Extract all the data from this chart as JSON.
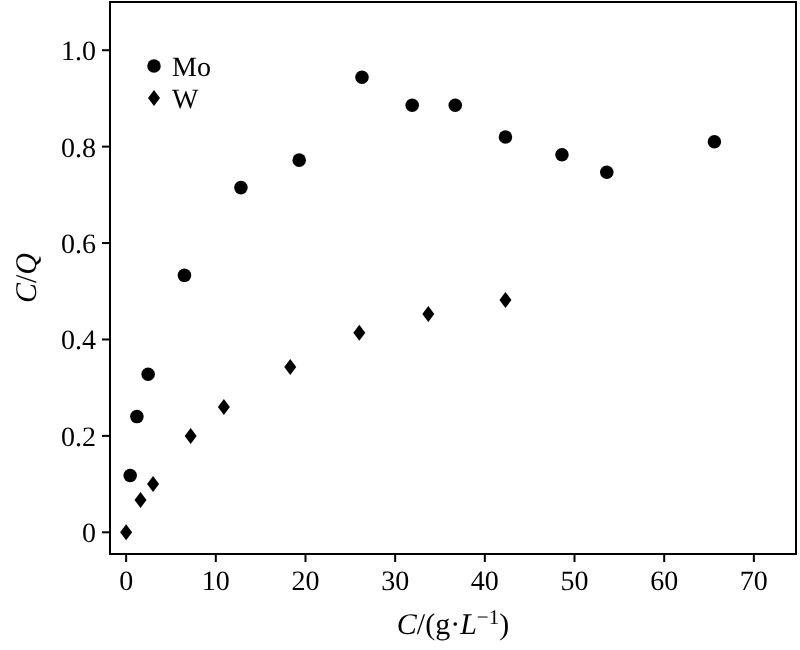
{
  "chart_data": {
    "type": "scatter",
    "xlabel": "C/(g·L$^{−1}$)",
    "ylabel": "C/Q",
    "xlim": [
      -1.8,
      74.7
    ],
    "ylim": [
      -0.045,
      1.1
    ],
    "xticks": [
      0,
      10,
      20,
      30,
      40,
      50,
      60,
      70
    ],
    "yticks": [
      0,
      0.2,
      0.4,
      0.6,
      0.8,
      {
        "value": 1,
        "label": "1.0"
      }
    ],
    "grid": false,
    "legend": "top left",
    "series": [
      {
        "name": "Mo",
        "color": "#000000",
        "marker": "circle",
        "x": [
          0.45,
          1.2,
          2.45,
          6.5,
          12.8,
          19.3,
          26.3,
          31.9,
          36.7,
          42.3,
          48.6,
          53.6,
          65.6
        ],
        "values": [
          0.118,
          0.24,
          0.328,
          0.533,
          0.715,
          0.772,
          0.944,
          0.886,
          0.886,
          0.82,
          0.783,
          0.747,
          0.81
        ]
      },
      {
        "name": "W",
        "color": "#000000",
        "marker": "diamond",
        "x": [
          0,
          1.6,
          3.0,
          7.2,
          10.9,
          18.3,
          26.0,
          33.7,
          42.3
        ],
        "values": [
          0,
          0.067,
          0.1,
          0.2,
          0.26,
          0.343,
          0.414,
          0.453,
          0.482
        ]
      }
    ]
  }
}
